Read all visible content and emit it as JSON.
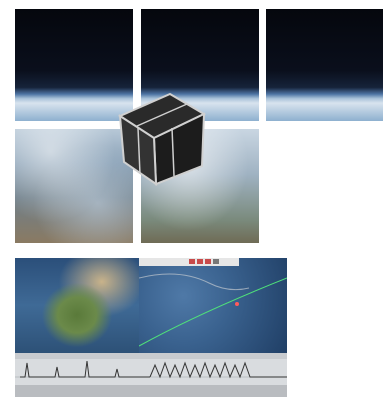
{
  "images": [
    {
      "name": "earth-horizon-panel-1",
      "kind": "space"
    },
    {
      "name": "earth-horizon-panel-2",
      "kind": "space"
    },
    {
      "name": "earth-horizon-panel-3",
      "kind": "space"
    },
    {
      "name": "earth-clouds-panel-4",
      "kind": "clouds"
    },
    {
      "name": "earth-clouds-panel-5",
      "kind": "clouds2"
    }
  ],
  "satellite": {
    "icon": "cubesat-icon"
  },
  "software": {
    "panels": [
      "world-map",
      "orbit-globe",
      "telemetry-graph"
    ],
    "colors": {
      "map_water": "#2b4f7a",
      "globe": "#3a628f",
      "graph_bg": "#d9dcdf",
      "accent": "#c84a4a"
    }
  }
}
